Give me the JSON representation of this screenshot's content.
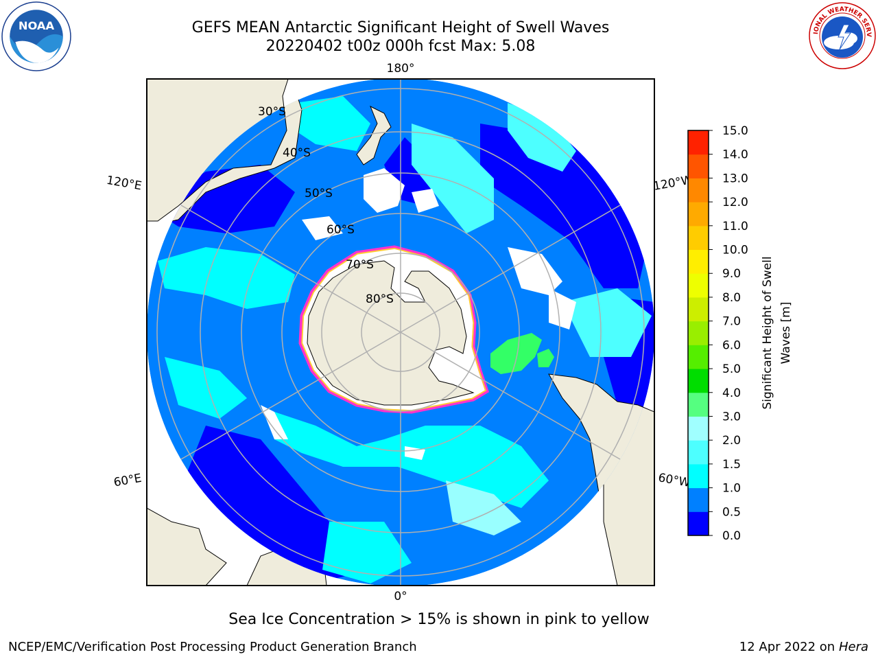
{
  "title": {
    "line1": "GEFS MEAN Antarctic Significant Height of Swell Waves",
    "line2": "20220402 t00z 000h fcst   Max: 5.08"
  },
  "map": {
    "longitude_labels": {
      "top": "180°",
      "bottom": "0°",
      "upper_left": "120°E",
      "upper_right": "120°W",
      "lower_left": "60°E",
      "lower_right": "60°W"
    },
    "latitude_labels": [
      "30°S",
      "40°S",
      "50°S",
      "60°S",
      "70°S",
      "80°S"
    ],
    "colors": {
      "land": "#efecdc",
      "ocean_0_0.5": "#0000ff",
      "ocean_0.5_1.0": "#0080ff",
      "ocean_1.0_1.5": "#00ffff",
      "ocean_1.5_2.0": "#4dffff",
      "ocean_2.0_2.5": "#99ffff",
      "swell_3_4": "#33ff66",
      "ice_edge": "#ff33cc",
      "ice_inner": "#ffcc33",
      "grid": "#b0b0b0"
    }
  },
  "colorbar": {
    "label": "Significant Height of Swell Waves [m]",
    "ticks": [
      "0.0",
      "0.5",
      "1.0",
      "1.5",
      "2.0",
      "3.0",
      "4.0",
      "5.0",
      "6.0",
      "7.0",
      "8.0",
      "9.0",
      "10.0",
      "11.0",
      "12.0",
      "13.0",
      "14.0",
      "15.0"
    ],
    "colors": [
      "#0000ff",
      "#0080ff",
      "#00ffff",
      "#4dffff",
      "#a0ffff",
      "#55ff80",
      "#00dd00",
      "#55ee00",
      "#99ee00",
      "#ccee00",
      "#eeff00",
      "#ffee00",
      "#ffcc00",
      "#ffaa00",
      "#ff8800",
      "#ff5500",
      "#ff2200",
      "#ff0000"
    ]
  },
  "caption": "Sea Ice Concentration > 15% is shown in pink to yellow",
  "footer": {
    "left": "NCEP/EMC/Verification Post Processing Product Generation Branch",
    "right_prefix": "12 Apr 2022 on ",
    "right_host": "Hera"
  },
  "logos": {
    "noaa_text": "NOAA",
    "nws_text": "NATIONAL WEATHER SERVICE"
  }
}
